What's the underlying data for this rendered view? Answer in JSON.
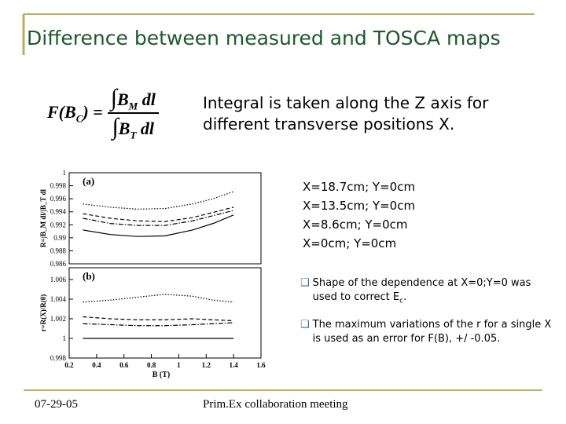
{
  "header": {
    "title": "Difference between measured and TOSCA maps"
  },
  "formula": {
    "lhs": "F(B",
    "lhs_sub": "C",
    "lhs_end": ") =",
    "integral": "∫",
    "num": "B",
    "num_sub": "M",
    "num_dl": "dl",
    "den": "B",
    "den_sub": "T",
    "den_dl": "dl"
  },
  "intro": [
    "Integral is taken along the Z axis for",
    "different transverse positions X."
  ],
  "bullets": [
    {
      "text": "Shape of the dependence at X=0;Y=0 was used to correct E",
      "sub": "c",
      "end": "."
    },
    {
      "text": "The maximum variations of the r for a single X is used as an error for F(B), +/ -0.05."
    }
  ],
  "footer": {
    "date": "07-29-05",
    "meeting": "Prim.Ex collaboration meeting"
  },
  "chart_data": [
    {
      "type": "line",
      "panel_label": "(a)",
      "y_label": "R=∫B_M dl/∫B_T dl",
      "x": [
        0.3,
        0.5,
        0.7,
        0.9,
        1.1,
        1.25,
        1.4
      ],
      "xlim": [
        0.2,
        1.6
      ],
      "ylim": [
        0.986,
        1
      ],
      "yticks": [
        0.986,
        0.988,
        0.99,
        0.992,
        0.994,
        0.996,
        0.998,
        1
      ],
      "series": [
        {
          "name": "X=18.7cm; Y=0cm",
          "color": "#000000",
          "line_style": "dotted",
          "values": [
            0.9952,
            0.9947,
            0.9944,
            0.9945,
            0.9952,
            0.996,
            0.9971
          ]
        },
        {
          "name": "X=13.5cm; Y=0cm",
          "color": "#000000",
          "line_style": "dashed",
          "values": [
            0.9937,
            0.993,
            0.9926,
            0.9925,
            0.9931,
            0.9939,
            0.9947
          ]
        },
        {
          "name": "X=8.6cm; Y=0cm",
          "color": "#000000",
          "line_style": "dashdot",
          "values": [
            0.993,
            0.9922,
            0.9919,
            0.9919,
            0.9926,
            0.9934,
            0.9942
          ]
        },
        {
          "name": "X=0cm; Y=0cm",
          "color": "#000000",
          "line_style": "solid",
          "values": [
            0.9912,
            0.9905,
            0.9902,
            0.9903,
            0.9912,
            0.9922,
            0.9935
          ]
        }
      ]
    },
    {
      "type": "line",
      "panel_label": "(b)",
      "y_label": "r=R(X)/R(0)",
      "x_label": "B (T)",
      "x": [
        0.3,
        0.5,
        0.7,
        0.9,
        1.1,
        1.25,
        1.4
      ],
      "xlim": [
        0.2,
        1.6
      ],
      "xticks": [
        0.2,
        0.4,
        0.6,
        0.8,
        1,
        1.2,
        1.4,
        1.6
      ],
      "ylim": [
        0.998,
        1.0072
      ],
      "yticks": [
        0.998,
        1,
        1.002,
        1.004,
        1.006
      ],
      "series": [
        {
          "color": "#000000",
          "line_style": "dotted",
          "values": [
            1.0037,
            1.0039,
            1.0042,
            1.0045,
            1.0043,
            1.0039,
            1.0037
          ]
        },
        {
          "color": "#000000",
          "line_style": "dashed",
          "values": [
            1.0022,
            1.002,
            1.0019,
            1.0019,
            1.002,
            1.0019,
            1.0018
          ]
        },
        {
          "color": "#000000",
          "line_style": "dashdot",
          "values": [
            1.0015,
            1.0014,
            1.0013,
            1.0013,
            1.0014,
            1.0015,
            1.0016
          ]
        },
        {
          "color": "#000000",
          "line_style": "solid",
          "values": [
            1,
            1,
            1,
            1,
            1,
            1,
            1
          ]
        }
      ]
    }
  ]
}
